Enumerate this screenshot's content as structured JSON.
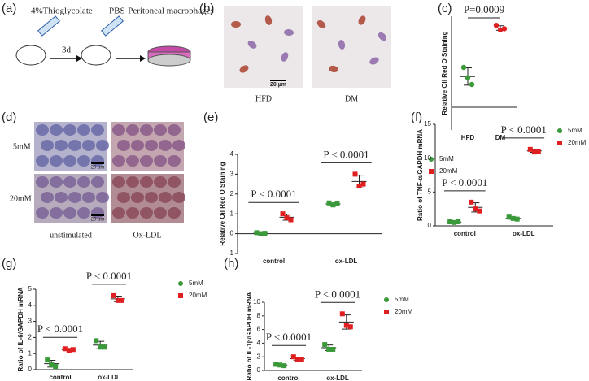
{
  "figure": {
    "panel_labels": [
      "(a)",
      "(b)",
      "(c)",
      "(d)",
      "(e)",
      "(f)",
      "(g)",
      "(h)"
    ],
    "schematic": {
      "reagent": "4%Thioglycolate",
      "wash": "PBS",
      "time": "3d",
      "cells": "Peritoneal macrophages"
    },
    "micrographs_b": {
      "labels": [
        "HFD",
        "DM"
      ],
      "scale_bar": "20 µm"
    },
    "micrographs_d": {
      "rows": [
        "5mM",
        "20mM"
      ],
      "columns": [
        "unstimulated",
        "Ox-LDL"
      ],
      "scale_bars": [
        "20 µm",
        "20 µm"
      ]
    }
  },
  "chart_data": [
    {
      "type": "dot",
      "y_label": "Relative Oil Red O Staining",
      "categories": [
        "HFD",
        "DM"
      ],
      "values": [
        [
          1.75,
          1.3,
          1.0
        ],
        [
          3.6,
          3.4,
          3.45
        ]
      ],
      "mean": [
        1.35,
        3.48
      ],
      "sd": [
        0.38,
        0.1
      ],
      "colors": [
        "#3a9a3a",
        "#e02020"
      ],
      "ylim": [
        -1,
        4
      ],
      "annotations": [
        {
          "text": "P=0.0009"
        }
      ]
    },
    {
      "type": "dot",
      "y_label": "Relative Oil Red O Staining",
      "categories": [
        "control",
        "ox-LDL"
      ],
      "series": [
        {
          "name": "5mM",
          "color": "#3a9a3a",
          "values": [
            [
              0.05,
              0.0,
              0.02
            ],
            [
              1.55,
              1.45,
              1.5
            ]
          ],
          "mean": [
            0.02,
            1.5
          ],
          "sd": [
            0.03,
            0.05
          ]
        },
        {
          "name": "20mM",
          "color": "#e02020",
          "values": [
            [
              1.0,
              0.8,
              0.7
            ],
            [
              3.0,
              2.4,
              2.5
            ]
          ],
          "mean": [
            0.83,
            2.63
          ],
          "sd": [
            0.15,
            0.32
          ]
        }
      ],
      "ylim": [
        -1,
        4
      ],
      "yticks": [
        -1,
        0,
        1,
        2,
        3,
        4
      ],
      "annotations": [
        {
          "text": "P < 0.0001"
        },
        {
          "text": "P < 0.0001"
        }
      ]
    },
    {
      "type": "dot",
      "y_label": "Ratio of TNF-α/GAPDH mRNA",
      "categories": [
        "control",
        "ox-LDL"
      ],
      "series": [
        {
          "name": "5mM",
          "color": "#3a9a3a",
          "values": [
            [
              0.6,
              0.5,
              0.6
            ],
            [
              1.3,
              1.1,
              1.0
            ]
          ],
          "mean": [
            0.57,
            1.13
          ],
          "sd": [
            0.06,
            0.15
          ]
        },
        {
          "name": "20mM",
          "color": "#e02020",
          "values": [
            [
              3.5,
              2.5,
              2.2
            ],
            [
              11.3,
              10.9,
              11.0
            ]
          ],
          "mean": [
            2.73,
            11.07
          ],
          "sd": [
            0.68,
            0.21
          ]
        }
      ],
      "ylim": [
        0,
        15
      ],
      "yticks": [
        0,
        5,
        10,
        15
      ],
      "annotations": [
        {
          "text": "P < 0.0001"
        },
        {
          "text": "P < 0.0001"
        }
      ]
    },
    {
      "type": "dot",
      "y_label": "Ratio of IL-6/GAPDH mRNA",
      "categories": [
        "control",
        "ox-LDL"
      ],
      "series": [
        {
          "name": "5mM",
          "color": "#3a9a3a",
          "values": [
            [
              0.6,
              0.3,
              0.2
            ],
            [
              1.8,
              1.4,
              1.4
            ]
          ],
          "mean": [
            0.37,
            1.53
          ],
          "sd": [
            0.21,
            0.23
          ]
        },
        {
          "name": "20mM",
          "color": "#e02020",
          "values": [
            [
              1.3,
              1.2,
              1.25
            ],
            [
              4.6,
              4.3,
              4.3
            ]
          ],
          "mean": [
            1.25,
            4.4
          ],
          "sd": [
            0.05,
            0.17
          ]
        }
      ],
      "ylim": [
        0,
        5
      ],
      "yticks": [
        0,
        1,
        2,
        3,
        4,
        5
      ],
      "annotations": [
        {
          "text": "P < 0.0001"
        },
        {
          "text": "P < 0.0001"
        }
      ]
    },
    {
      "type": "dot",
      "y_label": "Ratio of IL-1β/GAPDH mRNA",
      "categories": [
        "control",
        "ox-LDL"
      ],
      "series": [
        {
          "name": "5mM",
          "color": "#3a9a3a",
          "values": [
            [
              0.9,
              0.8,
              0.7
            ],
            [
              3.8,
              3.1,
              3.1
            ]
          ],
          "mean": [
            0.8,
            3.33
          ],
          "sd": [
            0.1,
            0.4
          ]
        },
        {
          "name": "20mM",
          "color": "#e02020",
          "values": [
            [
              2.0,
              1.6,
              1.6
            ],
            [
              8.3,
              6.6,
              6.4
            ]
          ],
          "mean": [
            1.73,
            7.1
          ],
          "sd": [
            0.23,
            1.04
          ]
        }
      ],
      "ylim": [
        0,
        10
      ],
      "yticks": [
        0,
        2,
        4,
        6,
        8,
        10
      ],
      "annotations": [
        {
          "text": "P < 0.0001"
        },
        {
          "text": "P < 0.0001"
        }
      ]
    }
  ]
}
